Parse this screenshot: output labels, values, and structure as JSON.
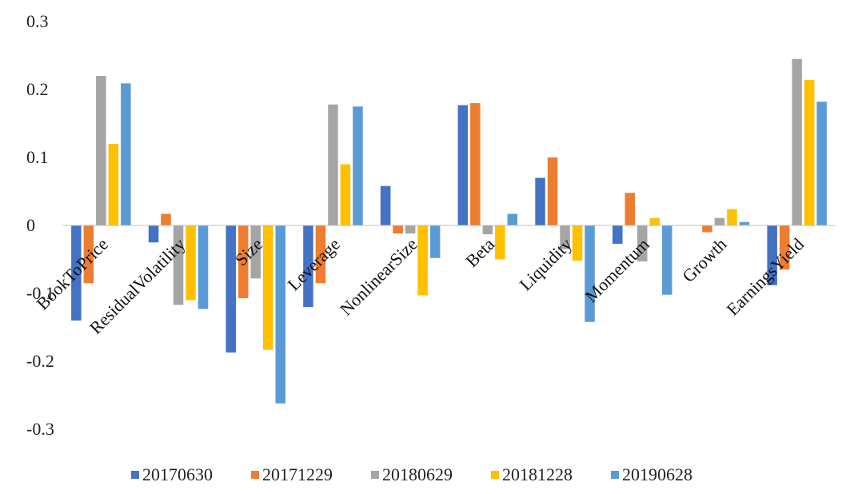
{
  "chart_data": {
    "type": "bar",
    "title": "",
    "xlabel": "",
    "ylabel": "",
    "ylim": [
      -0.3,
      0.3
    ],
    "yticks": [
      0.3,
      0.2,
      0.1,
      0,
      -0.1,
      -0.2,
      -0.3
    ],
    "ytick_labels": [
      "0.3",
      "0.2",
      "0.1",
      "0",
      "-0.1",
      "-0.2",
      "-0.3"
    ],
    "grid": false,
    "legend_position": "bottom",
    "categories": [
      "BookToPrice",
      "ResidualVolatility",
      "Size",
      "Leverage",
      "NonlinearSize",
      "Beta",
      "Liquidity",
      "Momentum",
      "Growth",
      "EarningsYield"
    ],
    "series": [
      {
        "name": "20170630",
        "color": "#4472C4",
        "values": [
          -0.14,
          -0.025,
          -0.187,
          -0.12,
          0.058,
          0.177,
          0.07,
          -0.027,
          0.0,
          -0.088
        ]
      },
      {
        "name": "20171229",
        "color": "#ED7D31",
        "values": [
          -0.085,
          0.017,
          -0.107,
          -0.085,
          -0.012,
          0.18,
          0.1,
          0.048,
          -0.01,
          -0.065
        ]
      },
      {
        "name": "20180629",
        "color": "#A5A5A5",
        "values": [
          0.22,
          -0.117,
          -0.078,
          0.178,
          -0.012,
          -0.013,
          -0.035,
          -0.053,
          0.011,
          0.245
        ]
      },
      {
        "name": "20181228",
        "color": "#FFC000",
        "values": [
          0.12,
          -0.11,
          -0.183,
          0.09,
          -0.103,
          -0.05,
          -0.052,
          0.011,
          0.024,
          0.214
        ]
      },
      {
        "name": "20190628",
        "color": "#5B9BD5",
        "values": [
          0.209,
          -0.123,
          -0.262,
          0.175,
          -0.048,
          0.017,
          -0.142,
          -0.102,
          0.005,
          0.182
        ]
      }
    ]
  }
}
